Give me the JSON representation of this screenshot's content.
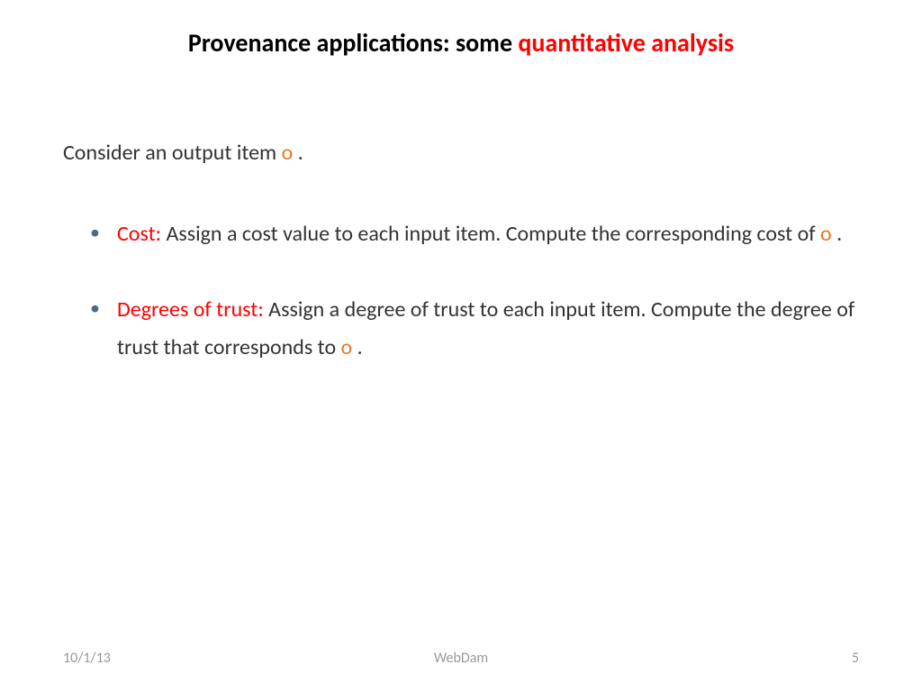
{
  "title": {
    "prefix": "Provenance applications:   some ",
    "highlight": "quantitative analysis"
  },
  "intro": {
    "prefix": "Consider an output item ",
    "symbol": "o",
    "suffix": "  ."
  },
  "bullets": [
    {
      "label": "Cost:",
      "text_before": "  Assign a cost value to each input item. Compute the corresponding cost of  ",
      "symbol": "o",
      "text_after": "  ."
    },
    {
      "label": "Degrees of trust:",
      "text_before": "  Assign a degree of trust to each input item. Compute the degree of trust that corresponds to  ",
      "symbol": "o",
      "text_after": "  ."
    }
  ],
  "footer": {
    "date": "10/1/13",
    "center": "WebDam",
    "page": "5"
  },
  "colors": {
    "background": "#ffffff",
    "title_black": "#000000",
    "title_red": "#ff0000",
    "body_text": "#333333",
    "orange": "#e87722",
    "bullet_marker": "#4a6a8a",
    "footer_text": "#999999"
  },
  "typography": {
    "title_fontsize": 28,
    "body_fontsize": 24,
    "footer_fontsize": 16,
    "font_family": "Calibri"
  }
}
